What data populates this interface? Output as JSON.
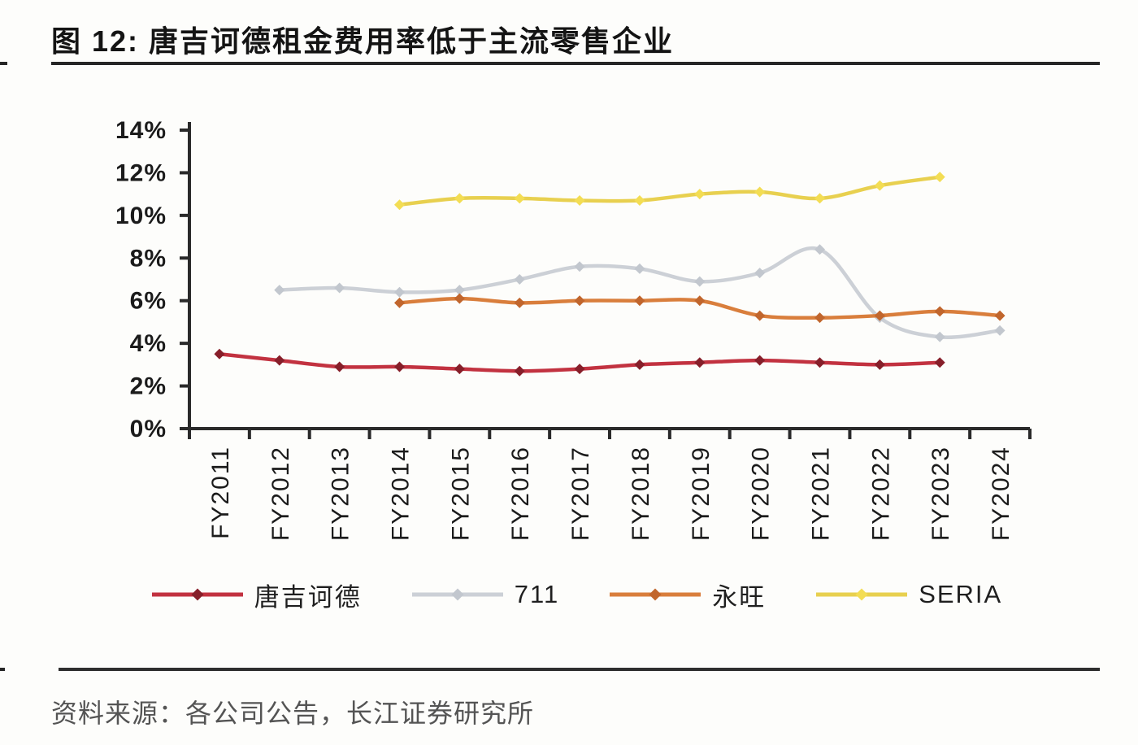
{
  "page": {
    "title": "图 12: 唐吉诃德租金费用率低于主流零售企业",
    "source": "资料来源：各公司公告，长江证券研究所"
  },
  "chart_data": {
    "type": "line",
    "title": "唐吉诃德租金费用率低于主流零售企业",
    "xlabel": "",
    "ylabel": "",
    "ylim": [
      0,
      14
    ],
    "ytick_step": 2,
    "ytick_suffix": "%",
    "grid": false,
    "legend_position": "bottom",
    "marker": "diamond",
    "categories": [
      "FY2011",
      "FY2012",
      "FY2013",
      "FY2014",
      "FY2015",
      "FY2016",
      "FY2017",
      "FY2018",
      "FY2019",
      "FY2020",
      "FY2021",
      "FY2022",
      "FY2023",
      "FY2024"
    ],
    "series": [
      {
        "name": "唐吉诃德",
        "slug": "donki",
        "color_line": "#c23240",
        "color_marker": "#871f2a",
        "values": [
          3.5,
          3.2,
          2.9,
          2.9,
          2.8,
          2.7,
          2.8,
          3.0,
          3.1,
          3.2,
          3.1,
          3.0,
          3.1,
          null
        ]
      },
      {
        "name": "711",
        "slug": "seven-eleven",
        "color_line": "#ccd0d6",
        "color_marker": "#c2c7ce",
        "values": [
          null,
          6.5,
          6.6,
          6.4,
          6.5,
          7.0,
          7.6,
          7.5,
          6.9,
          7.3,
          8.4,
          5.2,
          4.3,
          4.6
        ]
      },
      {
        "name": "永旺",
        "slug": "aeon",
        "color_line": "#d97e3c",
        "color_marker": "#c1662d",
        "values": [
          null,
          null,
          null,
          5.9,
          6.1,
          5.9,
          6.0,
          6.0,
          6.0,
          5.3,
          5.2,
          5.3,
          5.5,
          5.3
        ]
      },
      {
        "name": "SERIA",
        "slug": "seria",
        "color_line": "#e8d04f",
        "color_marker": "#f3dd54",
        "values": [
          null,
          null,
          null,
          10.5,
          10.8,
          10.8,
          10.7,
          10.7,
          11.0,
          11.1,
          10.8,
          11.4,
          11.8,
          null
        ]
      }
    ],
    "axis_color": "#2a2a2a",
    "tick_label_color": "#1b1b1b"
  }
}
